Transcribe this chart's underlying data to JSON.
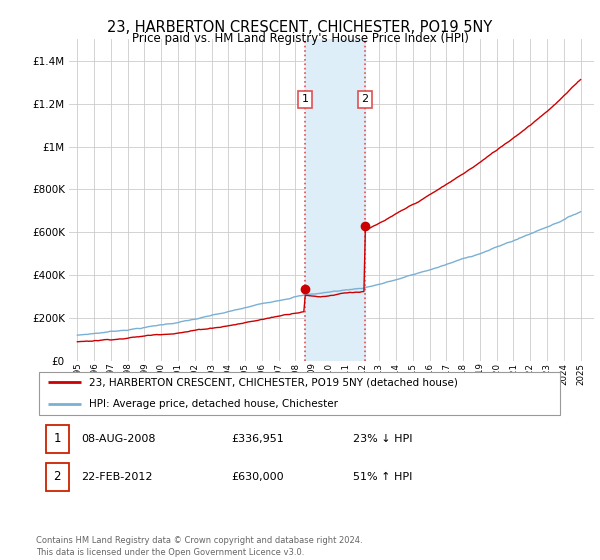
{
  "title": "23, HARBERTON CRESCENT, CHICHESTER, PO19 5NY",
  "subtitle": "Price paid vs. HM Land Registry's House Price Index (HPI)",
  "legend_line1": "23, HARBERTON CRESCENT, CHICHESTER, PO19 5NY (detached house)",
  "legend_line2": "HPI: Average price, detached house, Chichester",
  "transaction1_date": "08-AUG-2008",
  "transaction1_price": "£336,951",
  "transaction1_hpi": "23% ↓ HPI",
  "transaction2_date": "22-FEB-2012",
  "transaction2_price": "£630,000",
  "transaction2_hpi": "51% ↑ HPI",
  "footer": "Contains HM Land Registry data © Crown copyright and database right 2024.\nThis data is licensed under the Open Government Licence v3.0.",
  "hpi_color": "#7ab0d4",
  "price_color": "#cc0000",
  "marker_color": "#cc0000",
  "shaded_region_color": "#ddeef8",
  "vline_color": "#e05050",
  "ylim": [
    0,
    1500000
  ],
  "yticks": [
    0,
    200000,
    400000,
    600000,
    800000,
    1000000,
    1200000,
    1400000
  ],
  "transaction1_year": 2008.58,
  "transaction2_year": 2012.13,
  "transaction1_price_val": 336951,
  "transaction2_price_val": 630000
}
